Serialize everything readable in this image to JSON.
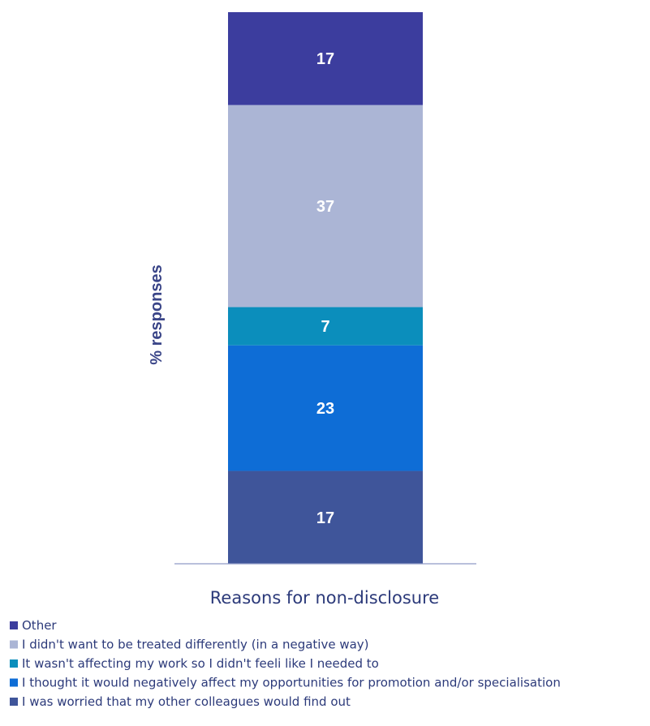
{
  "chart_data": {
    "type": "bar",
    "stacked": true,
    "categories": [
      ""
    ],
    "xlabel": "Reasons for non-disclosure",
    "ylabel": "% responses",
    "ylim": [
      0,
      101
    ],
    "grid": false,
    "legend_position": "bottom-left",
    "series": [
      {
        "name": "I was worried that my other colleagues would find out",
        "values": [
          17
        ],
        "color": "#3f559a"
      },
      {
        "name": "I thought it would negatively affect my opportunities for promotion and/or specialisation",
        "values": [
          23
        ],
        "color": "#0e6dd6"
      },
      {
        "name": "It wasn't affecting my work so I didn't feeli like I needed to",
        "values": [
          7
        ],
        "color": "#0b8ebc"
      },
      {
        "name": "I didn't want to be treated differently (in a negative way)",
        "values": [
          37
        ],
        "color": "#abb5d5"
      },
      {
        "name": "Other",
        "values": [
          17
        ],
        "color": "#3c3d9e"
      }
    ],
    "colors": {
      "axis_title": "#3a4588",
      "x_title": "#2c3a7a",
      "axis_line": "#8f9ac6",
      "label": "#ffffff"
    }
  }
}
